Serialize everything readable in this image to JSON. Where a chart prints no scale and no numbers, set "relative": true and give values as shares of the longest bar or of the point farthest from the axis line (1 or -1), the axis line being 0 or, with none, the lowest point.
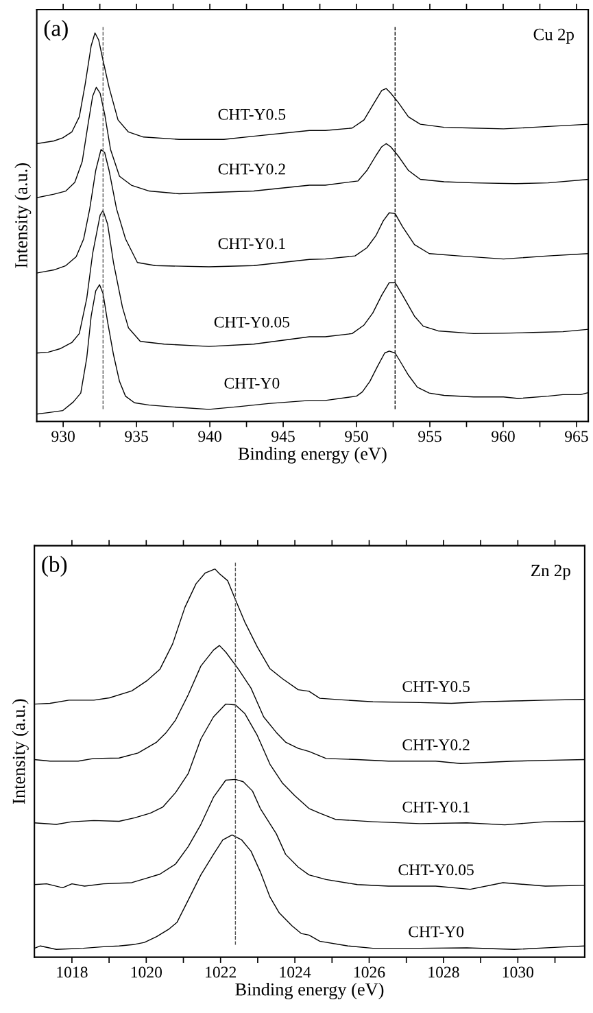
{
  "chart_data": [
    {
      "type": "line",
      "relative": true,
      "xlabel": "Binding energy (eV)",
      "ylabel": "Intensity (a.u.)",
      "annotations": [
        "(a)",
        "Cu 2p"
      ],
      "xlim": [
        928.2,
        965.8
      ],
      "xticks": [
        930,
        {
          "value": 932.5,
          "label": null
        },
        935,
        {
          "value": 937.5,
          "label": null
        },
        940,
        {
          "value": 942.5,
          "label": null
        },
        945,
        {
          "value": 947.5,
          "label": null
        },
        950,
        {
          "value": 952.5,
          "label": null
        },
        955,
        {
          "value": 957.5,
          "label": null
        },
        960,
        {
          "value": 962.5,
          "label": null
        },
        965
      ],
      "ref_lines": [
        {
          "axis": "x",
          "value": 932.72,
          "color": "#555555",
          "line_style": "dashed"
        },
        {
          "axis": "x",
          "value": 952.63,
          "color": "#000000",
          "line_style": "dashed"
        }
      ],
      "series": [
        {
          "name": "CHT-Y0",
          "color": "#000000",
          "x": [
            928.21,
            929.07,
            929.98,
            930.69,
            931.2,
            931.61,
            931.91,
            932.22,
            932.48,
            932.72,
            933.03,
            933.43,
            933.84,
            934.25,
            934.86,
            935.87,
            937.91,
            939.94,
            941.97,
            944.0,
            946.79,
            947.87,
            950.0,
            950.4,
            950.91,
            951.42,
            951.92,
            952.23,
            952.63,
            952.94,
            953.54,
            954.15,
            954.96,
            955.97,
            957.99,
            960.02,
            961.03,
            963.05,
            964.07,
            965.28,
            965.79
          ],
          "values": [
            0.019,
            0.023,
            0.028,
            0.05,
            0.073,
            0.164,
            0.271,
            0.336,
            0.352,
            0.329,
            0.256,
            0.172,
            0.103,
            0.065,
            0.048,
            0.042,
            0.036,
            0.031,
            0.038,
            0.046,
            0.054,
            0.054,
            0.065,
            0.076,
            0.103,
            0.141,
            0.176,
            0.181,
            0.176,
            0.157,
            0.119,
            0.088,
            0.073,
            0.067,
            0.063,
            0.063,
            0.059,
            0.065,
            0.069,
            0.069,
            0.074
          ]
        },
        {
          "name": "CHT-Y0.05",
          "color": "#000000",
          "x": [
            928.21,
            928.96,
            929.78,
            930.59,
            931.1,
            931.61,
            932.01,
            932.52,
            932.72,
            933.03,
            933.43,
            934.04,
            934.45,
            935.26,
            936.89,
            939.94,
            942.99,
            946.79,
            947.87,
            949.7,
            950.51,
            951.11,
            951.72,
            952.23,
            952.63,
            953.14,
            953.95,
            954.55,
            955.57,
            957.99,
            960.02,
            962.04,
            964.07,
            965.79
          ],
          "values": [
            0.176,
            0.178,
            0.187,
            0.203,
            0.226,
            0.317,
            0.432,
            0.531,
            0.543,
            0.508,
            0.409,
            0.294,
            0.241,
            0.206,
            0.199,
            0.193,
            0.199,
            0.218,
            0.218,
            0.226,
            0.248,
            0.279,
            0.325,
            0.357,
            0.357,
            0.325,
            0.271,
            0.245,
            0.233,
            0.226,
            0.227,
            0.229,
            0.231,
            0.237
          ]
        },
        {
          "name": "CHT-Y0.1",
          "color": "#000000",
          "x": [
            928.21,
            929.37,
            930.18,
            930.89,
            931.4,
            931.81,
            932.22,
            932.58,
            932.83,
            933.13,
            933.64,
            934.25,
            935.06,
            936.28,
            939.94,
            942.99,
            946.79,
            947.87,
            949.9,
            950.71,
            951.32,
            951.82,
            952.23,
            952.63,
            953.14,
            953.95,
            954.96,
            956.98,
            960.02,
            963.06,
            965.79
          ],
          "values": [
            0.382,
            0.39,
            0.401,
            0.424,
            0.47,
            0.547,
            0.646,
            0.7,
            0.692,
            0.646,
            0.547,
            0.47,
            0.409,
            0.401,
            0.398,
            0.401,
            0.417,
            0.418,
            0.426,
            0.447,
            0.478,
            0.516,
            0.537,
            0.535,
            0.501,
            0.455,
            0.432,
            0.426,
            0.418,
            0.426,
            0.432
          ]
        },
        {
          "name": "CHT-Y0.2",
          "color": "#000000",
          "x": [
            928.21,
            929.37,
            930.18,
            930.79,
            931.3,
            931.71,
            932.01,
            932.26,
            932.52,
            932.83,
            933.23,
            933.84,
            934.65,
            935.87,
            937.91,
            939.94,
            942.99,
            946.79,
            947.87,
            950.1,
            950.71,
            951.32,
            951.72,
            952.02,
            952.33,
            952.83,
            953.54,
            954.35,
            955.97,
            957.99,
            960.83,
            963.06,
            965.79
          ],
          "values": [
            0.576,
            0.585,
            0.593,
            0.615,
            0.669,
            0.768,
            0.837,
            0.86,
            0.845,
            0.791,
            0.7,
            0.631,
            0.608,
            0.593,
            0.586,
            0.589,
            0.593,
            0.608,
            0.608,
            0.619,
            0.646,
            0.684,
            0.707,
            0.715,
            0.707,
            0.684,
            0.646,
            0.623,
            0.617,
            0.614,
            0.612,
            0.614,
            0.623
          ]
        },
        {
          "name": "CHT-Y0.5",
          "color": "#000000",
          "x": [
            928.21,
            929.37,
            929.98,
            930.59,
            931.1,
            931.5,
            931.91,
            932.17,
            932.42,
            932.72,
            933.13,
            933.74,
            934.45,
            935.47,
            937.91,
            940.96,
            942.99,
            946.79,
            947.87,
            949.7,
            950.51,
            951.11,
            951.72,
            952.02,
            952.33,
            952.83,
            953.54,
            954.35,
            955.97,
            957.99,
            960.02,
            962.04,
            965.79
          ],
          "values": [
            0.715,
            0.722,
            0.73,
            0.745,
            0.784,
            0.868,
            0.967,
            1,
            0.982,
            0.929,
            0.86,
            0.776,
            0.745,
            0.732,
            0.726,
            0.726,
            0.734,
            0.749,
            0.749,
            0.755,
            0.776,
            0.814,
            0.852,
            0.857,
            0.845,
            0.822,
            0.784,
            0.765,
            0.757,
            0.755,
            0.753,
            0.757,
            0.765
          ]
        }
      ]
    },
    {
      "type": "line",
      "relative": true,
      "xlabel": "Binding energy (eV)",
      "ylabel": "Intensity (a.u.)",
      "annotations": [
        "(b)",
        "Zn 2p"
      ],
      "xlim": [
        1016.99,
        1031.8
      ],
      "xticks": [
        1018,
        {
          "value": 1019,
          "label": null
        },
        1020,
        {
          "value": 1021,
          "label": null
        },
        1022,
        {
          "value": 1023,
          "label": null
        },
        1024,
        {
          "value": 1025,
          "label": null
        },
        1026,
        {
          "value": 1027,
          "label": null
        },
        1028,
        {
          "value": 1029,
          "label": null
        },
        1030,
        {
          "value": 1031,
          "label": null
        }
      ],
      "ref_lines": [
        {
          "axis": "x",
          "value": 1022.4,
          "color": "#555555",
          "line_style": "dashed"
        }
      ],
      "series": [
        {
          "name": "CHT-Y0",
          "color": "#000000",
          "x": [
            1016.99,
            1017.15,
            1017.58,
            1018.3,
            1018.85,
            1019.27,
            1019.69,
            1019.95,
            1020.28,
            1020.62,
            1020.83,
            1021.13,
            1021.47,
            1021.81,
            1022.06,
            1022.31,
            1022.57,
            1022.82,
            1023.07,
            1023.33,
            1023.58,
            1023.92,
            1024.17,
            1024.38,
            1024.67,
            1025.43,
            1026.1,
            1027.37,
            1028.63,
            1029.9,
            1031.16,
            1031.8
          ],
          "values": [
            0.023,
            0.029,
            0.02,
            0.023,
            0.027,
            0.029,
            0.033,
            0.038,
            0.053,
            0.073,
            0.09,
            0.147,
            0.212,
            0.265,
            0.302,
            0.315,
            0.302,
            0.273,
            0.22,
            0.155,
            0.114,
            0.081,
            0.061,
            0.057,
            0.041,
            0.029,
            0.023,
            0.023,
            0.024,
            0.02,
            0.026,
            0.029
          ]
        },
        {
          "name": "CHT-Y0.05",
          "color": "#000000",
          "x": [
            1016.99,
            1017.32,
            1017.75,
            1018.0,
            1018.34,
            1018.85,
            1019.61,
            1020.03,
            1020.37,
            1020.79,
            1021.13,
            1021.47,
            1021.81,
            1022.14,
            1022.4,
            1022.61,
            1022.86,
            1023.07,
            1023.5,
            1023.75,
            1024.09,
            1024.38,
            1024.84,
            1025.68,
            1026.52,
            1027.79,
            1028.72,
            1029.6,
            1030.74,
            1031.8
          ],
          "values": [
            0.187,
            0.189,
            0.179,
            0.189,
            0.183,
            0.189,
            0.192,
            0.204,
            0.214,
            0.24,
            0.285,
            0.342,
            0.412,
            0.456,
            0.458,
            0.452,
            0.428,
            0.383,
            0.318,
            0.265,
            0.232,
            0.212,
            0.2,
            0.187,
            0.183,
            0.183,
            0.175,
            0.192,
            0.183,
            0.185
          ]
        },
        {
          "name": "CHT-Y0.1",
          "color": "#000000",
          "x": [
            1016.99,
            1017.58,
            1018.0,
            1018.59,
            1019.27,
            1019.69,
            1020.11,
            1020.45,
            1020.79,
            1021.13,
            1021.47,
            1021.81,
            1022.14,
            1022.4,
            1022.65,
            1022.99,
            1023.33,
            1023.67,
            1024.0,
            1024.38,
            1024.67,
            1025.09,
            1026.1,
            1027.37,
            1028.63,
            1029.65,
            1030.74,
            1031.8
          ],
          "values": [
            0.346,
            0.342,
            0.349,
            0.352,
            0.35,
            0.359,
            0.371,
            0.387,
            0.424,
            0.473,
            0.562,
            0.619,
            0.652,
            0.65,
            0.628,
            0.571,
            0.497,
            0.448,
            0.416,
            0.383,
            0.371,
            0.355,
            0.349,
            0.344,
            0.346,
            0.341,
            0.349,
            0.35
          ]
        },
        {
          "name": "CHT-Y0.2",
          "color": "#000000",
          "x": [
            1016.99,
            1017.41,
            1018.17,
            1018.59,
            1019.27,
            1019.78,
            1020.28,
            1020.54,
            1020.79,
            1021.13,
            1021.47,
            1021.81,
            1021.97,
            1022.14,
            1022.48,
            1022.82,
            1023.16,
            1023.5,
            1023.75,
            1024.09,
            1024.38,
            1024.84,
            1025.68,
            1026.52,
            1027.79,
            1028.46,
            1029.9,
            1030.74,
            1031.8
          ],
          "values": [
            0.509,
            0.505,
            0.505,
            0.512,
            0.513,
            0.526,
            0.554,
            0.579,
            0.611,
            0.676,
            0.75,
            0.791,
            0.803,
            0.786,
            0.742,
            0.693,
            0.619,
            0.579,
            0.554,
            0.538,
            0.53,
            0.512,
            0.509,
            0.505,
            0.505,
            0.499,
            0.505,
            0.507,
            0.509
          ]
        },
        {
          "name": "CHT-Y0.5",
          "color": "#000000",
          "x": [
            1016.99,
            1017.41,
            1017.92,
            1018.59,
            1019.01,
            1019.61,
            1020.03,
            1020.37,
            1020.71,
            1021.04,
            1021.34,
            1021.59,
            1021.85,
            1021.97,
            1022.19,
            1022.4,
            1022.65,
            1022.99,
            1023.33,
            1023.67,
            1024.09,
            1024.38,
            1024.67,
            1025.26,
            1026.1,
            1027.37,
            1028.21,
            1029.05,
            1029.9,
            1030.74,
            1031.8
          ],
          "values": [
            0.652,
            0.654,
            0.662,
            0.662,
            0.668,
            0.686,
            0.713,
            0.742,
            0.807,
            0.901,
            0.962,
            0.99,
            1,
            0.988,
            0.97,
            0.921,
            0.864,
            0.799,
            0.743,
            0.717,
            0.689,
            0.685,
            0.667,
            0.663,
            0.658,
            0.656,
            0.654,
            0.658,
            0.66,
            0.662,
            0.664
          ]
        }
      ]
    }
  ]
}
